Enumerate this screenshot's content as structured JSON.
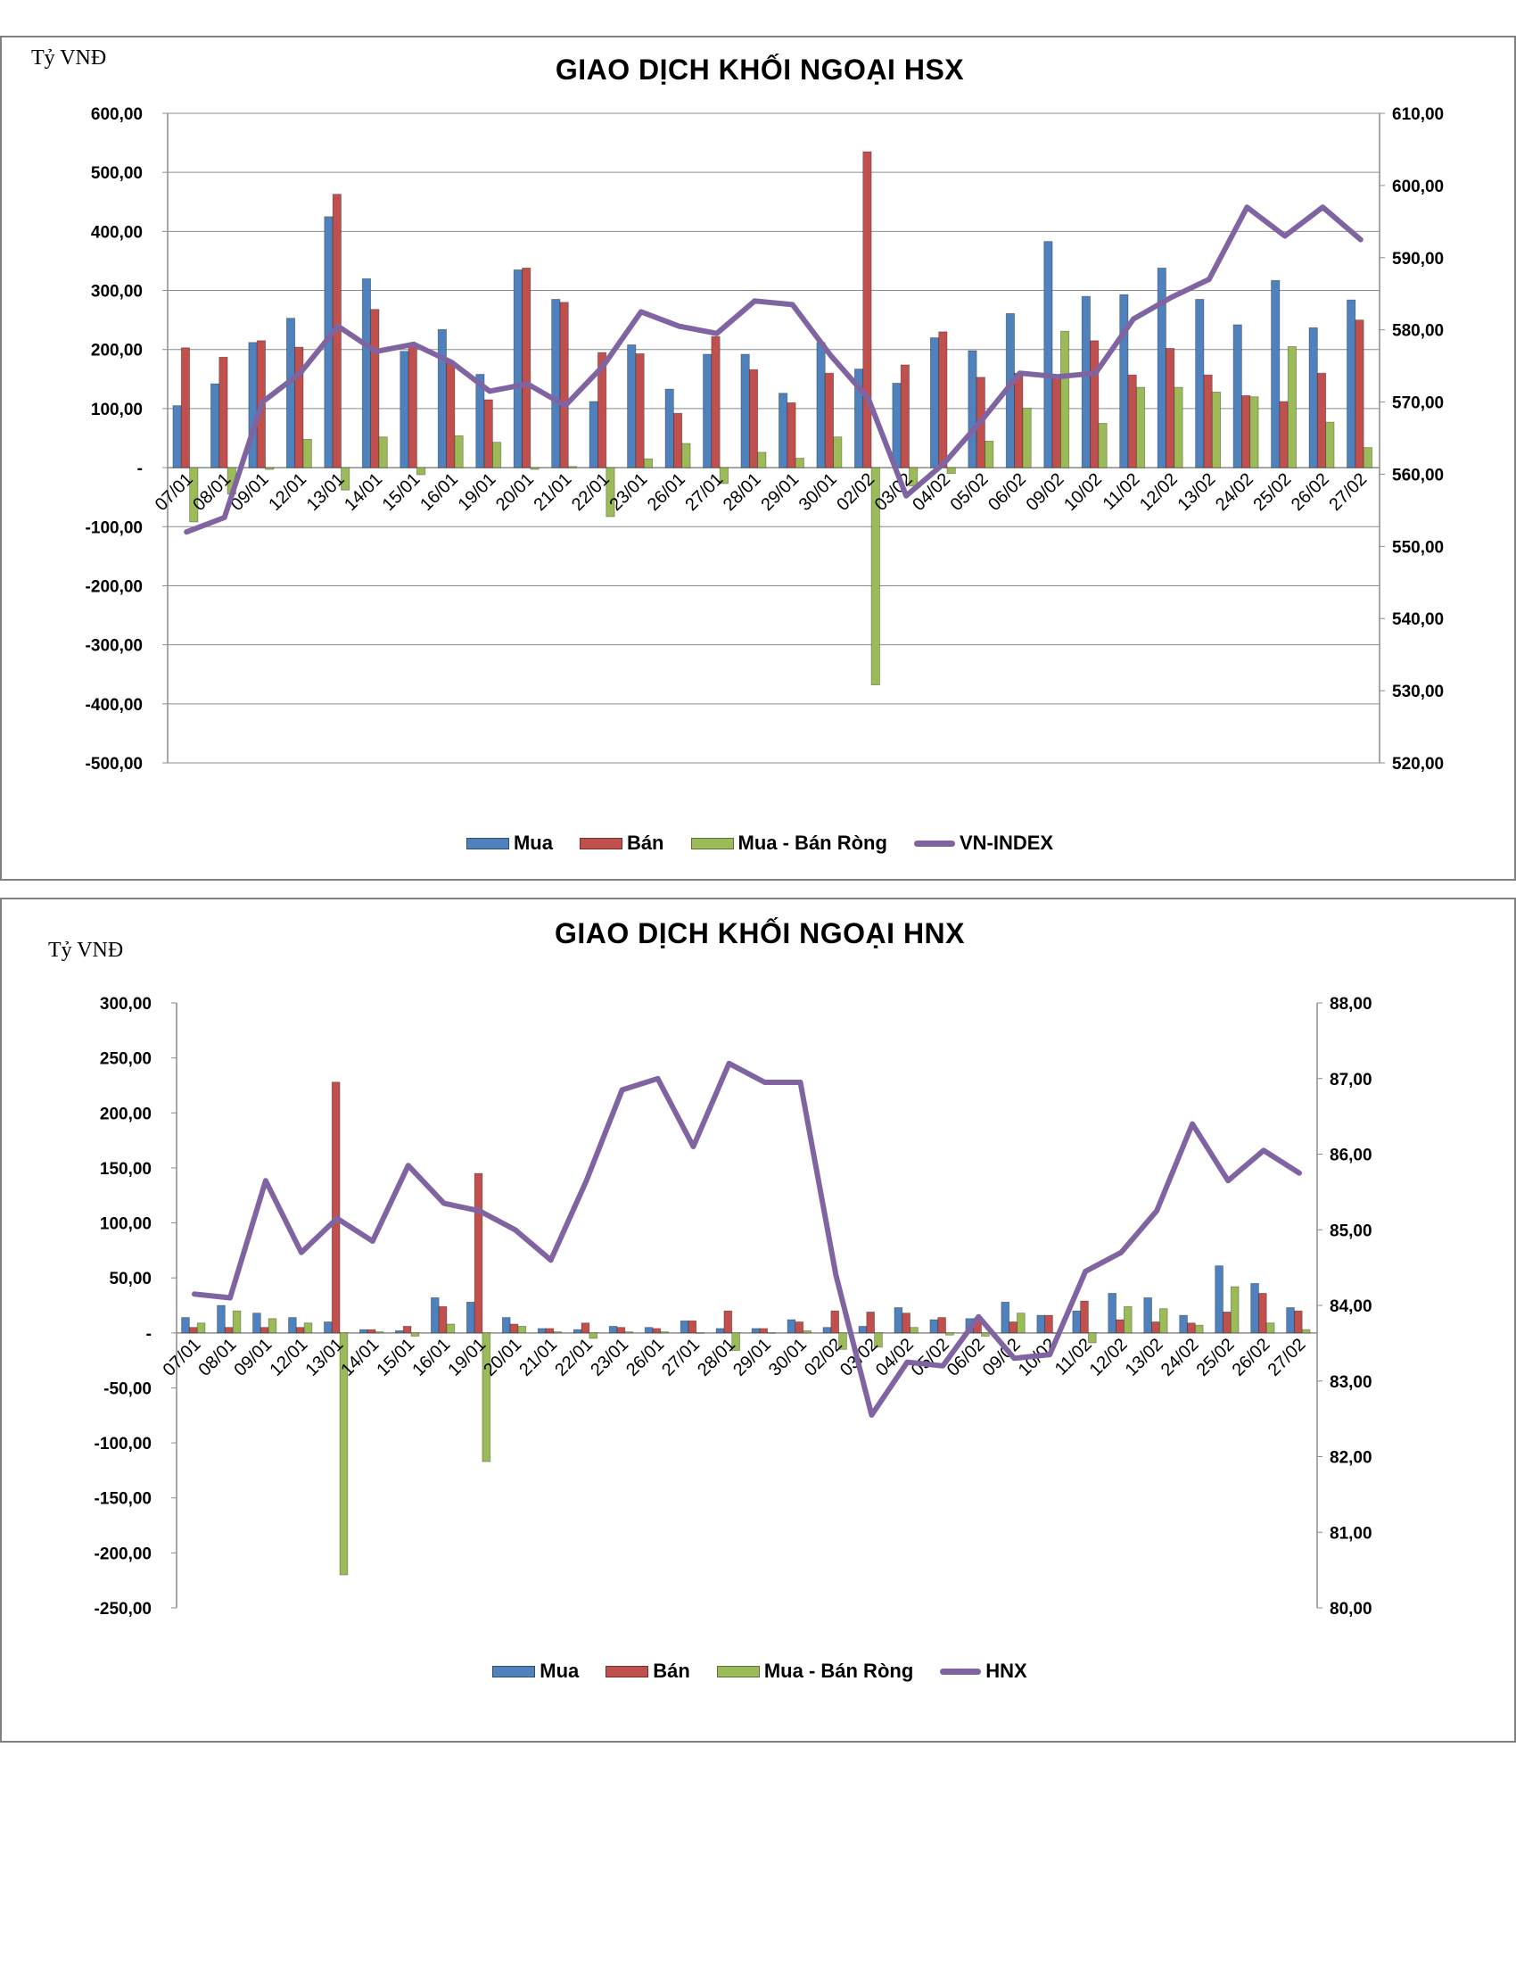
{
  "charts": [
    {
      "unit_label": "Tỷ VNĐ",
      "title": "GIAO DỊCH KHỐI NGOẠI HSX",
      "legend": [
        "Mua",
        "Bán",
        "Mua - Bán Ròng",
        "VN-INDEX"
      ],
      "left_ticks": [
        "600,00",
        "500,00",
        "400,00",
        "300,00",
        "200,00",
        "100,00",
        "-",
        "-100,00",
        "-200,00",
        "-300,00",
        "-400,00",
        "-500,00"
      ],
      "right_ticks": [
        "610,00",
        "600,00",
        "590,00",
        "580,00",
        "570,00",
        "560,00",
        "550,00",
        "540,00",
        "530,00",
        "520,00"
      ]
    },
    {
      "unit_label": "Tỷ VNĐ",
      "title": "GIAO DỊCH KHỐI NGOẠI HNX",
      "legend": [
        "Mua",
        "Bán",
        "Mua - Bán Ròng",
        "HNX"
      ],
      "left_ticks": [
        "300,00",
        "250,00",
        "200,00",
        "150,00",
        "100,00",
        "50,00",
        "-",
        "-50,00",
        "-100,00",
        "-150,00",
        "-200,00",
        "-250,00"
      ],
      "right_ticks": [
        "88,00",
        "87,00",
        "86,00",
        "85,00",
        "84,00",
        "83,00",
        "82,00",
        "81,00",
        "80,00"
      ]
    }
  ],
  "colors": {
    "mua": "#4f81bd",
    "ban": "#c0504d",
    "rong": "#9bbb59",
    "index": "#8064a2"
  },
  "chart_data": [
    {
      "type": "bar",
      "title": "GIAO DỊCH KHỐI NGOẠI HSX",
      "ylabel": "Tỷ VNĐ",
      "ylim": [
        -500,
        600
      ],
      "y2lim": [
        520,
        610
      ],
      "grid": true,
      "legend_position": "bottom",
      "categories": [
        "07/01",
        "08/01",
        "09/01",
        "12/01",
        "13/01",
        "14/01",
        "15/01",
        "16/01",
        "19/01",
        "20/01",
        "21/01",
        "22/01",
        "23/01",
        "26/01",
        "27/01",
        "28/01",
        "29/01",
        "30/01",
        "02/02",
        "03/02",
        "04/02",
        "05/02",
        "06/02",
        "09/02",
        "10/02",
        "11/02",
        "12/02",
        "13/02",
        "24/02",
        "25/02",
        "26/02",
        "27/02"
      ],
      "series": [
        {
          "name": "Mua",
          "type": "bar",
          "axis": "left",
          "values": [
            105,
            142,
            212,
            253,
            425,
            320,
            197,
            234,
            158,
            335,
            285,
            112,
            208,
            133,
            192,
            192,
            126,
            212,
            167,
            143,
            220,
            198,
            261,
            383,
            290,
            293,
            338,
            285,
            242,
            317,
            237,
            284
          ]
        },
        {
          "name": "Bán",
          "type": "bar",
          "axis": "left",
          "values": [
            203,
            187,
            215,
            204,
            463,
            268,
            207,
            180,
            115,
            338,
            280,
            195,
            193,
            92,
            222,
            166,
            110,
            160,
            535,
            174,
            230,
            153,
            160,
            152,
            215,
            157,
            202,
            157,
            122,
            112,
            160,
            250
          ]
        },
        {
          "name": "Mua - Bán Ròng",
          "type": "bar",
          "axis": "left",
          "values": [
            -92,
            -45,
            -3,
            48,
            -38,
            52,
            -12,
            54,
            43,
            -3,
            2,
            -83,
            15,
            41,
            -27,
            26,
            16,
            52,
            -368,
            -31,
            -10,
            45,
            101,
            231,
            75,
            136,
            136,
            128,
            120,
            205,
            77,
            34
          ]
        },
        {
          "name": "VN-INDEX",
          "type": "line",
          "axis": "right",
          "values": [
            552,
            554,
            570,
            574,
            580.5,
            577,
            578,
            575.5,
            571.5,
            572.5,
            569.5,
            575,
            582.5,
            580.5,
            579.5,
            584,
            583.5,
            576.5,
            570.5,
            557,
            561.5,
            567.5,
            574,
            573.5,
            574,
            581.5,
            584.5,
            587,
            597,
            593,
            597,
            592.5
          ]
        }
      ]
    },
    {
      "type": "bar",
      "title": "GIAO DỊCH KHỐI NGOẠI HNX",
      "ylabel": "Tỷ VNĐ",
      "ylim": [
        -250,
        300
      ],
      "y2lim": [
        80,
        88
      ],
      "grid": false,
      "legend_position": "bottom",
      "categories": [
        "07/01",
        "08/01",
        "09/01",
        "12/01",
        "13/01",
        "14/01",
        "15/01",
        "16/01",
        "19/01",
        "20/01",
        "21/01",
        "22/01",
        "23/01",
        "26/01",
        "27/01",
        "28/01",
        "29/01",
        "30/01",
        "02/02",
        "03/02",
        "04/02",
        "05/02",
        "06/02",
        "09/02",
        "10/02",
        "11/02",
        "12/02",
        "13/02",
        "24/02",
        "25/02",
        "26/02",
        "27/02"
      ],
      "series": [
        {
          "name": "Mua",
          "type": "bar",
          "axis": "left",
          "values": [
            14,
            25,
            18,
            14,
            10,
            3,
            2,
            32,
            28,
            14,
            4,
            3,
            6,
            5,
            11,
            4,
            4,
            12,
            5,
            6,
            23,
            12,
            13,
            28,
            16,
            20,
            36,
            32,
            16,
            61,
            45,
            23
          ]
        },
        {
          "name": "Bán",
          "type": "bar",
          "axis": "left",
          "values": [
            5,
            5,
            5,
            5,
            228,
            3,
            6,
            24,
            145,
            8,
            4,
            9,
            5,
            4,
            11,
            20,
            4,
            10,
            20,
            19,
            18,
            14,
            13,
            10,
            16,
            29,
            12,
            10,
            9,
            19,
            36,
            20
          ]
        },
        {
          "name": "Mua - Bán Ròng",
          "type": "bar",
          "axis": "left",
          "values": [
            9,
            20,
            13,
            9,
            -220,
            1,
            -3,
            8,
            -117,
            6,
            1,
            -5,
            1,
            1,
            0,
            -16,
            0,
            2,
            -15,
            -13,
            5,
            -2,
            -3,
            18,
            0,
            -9,
            24,
            22,
            7,
            42,
            9,
            3
          ]
        },
        {
          "name": "HNX",
          "type": "line",
          "axis": "right",
          "values": [
            84.15,
            84.1,
            85.65,
            84.7,
            85.15,
            84.85,
            85.85,
            85.35,
            85.25,
            85.0,
            84.6,
            85.65,
            86.85,
            87.0,
            86.1,
            87.2,
            86.95,
            86.95,
            84.4,
            82.55,
            83.25,
            83.2,
            83.85,
            83.3,
            83.35,
            84.45,
            84.7,
            85.25,
            86.4,
            85.65,
            86.05,
            85.75
          ]
        }
      ]
    }
  ]
}
